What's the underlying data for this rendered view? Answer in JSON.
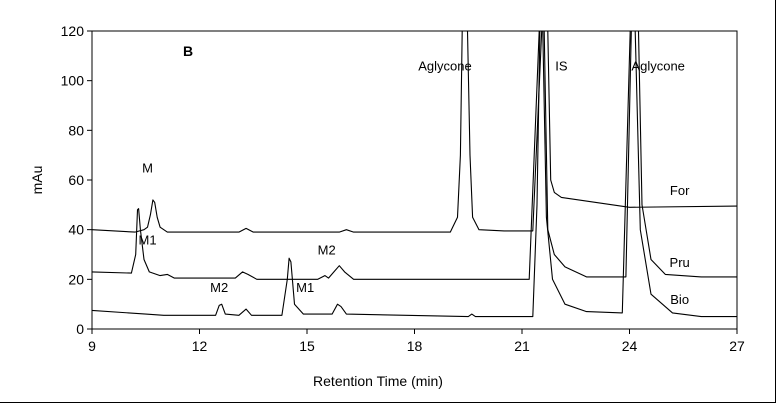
{
  "chart_data": {
    "type": "line",
    "panel_label": "B",
    "xlabel": "Retention Time (min)",
    "ylabel": "mAu",
    "xlim": [
      9,
      27
    ],
    "ylim": [
      0,
      120
    ],
    "x_ticks": [
      "9",
      "12",
      "15",
      "18",
      "21",
      "24",
      "27"
    ],
    "y_ticks": [
      "0",
      "20",
      "40",
      "60",
      "80",
      "100",
      "120"
    ],
    "grid": false,
    "series": [
      {
        "name": "For",
        "points": [
          [
            9.0,
            40
          ],
          [
            10.2,
            39
          ],
          [
            10.45,
            40
          ],
          [
            10.55,
            41
          ],
          [
            10.63,
            46
          ],
          [
            10.7,
            52
          ],
          [
            10.75,
            51
          ],
          [
            10.82,
            45
          ],
          [
            10.9,
            41
          ],
          [
            11.1,
            39
          ],
          [
            13.1,
            39
          ],
          [
            13.3,
            40.5
          ],
          [
            13.5,
            39
          ],
          [
            15.9,
            39
          ],
          [
            16.1,
            40
          ],
          [
            16.3,
            39
          ],
          [
            19.0,
            39
          ],
          [
            19.2,
            45
          ],
          [
            19.28,
            70
          ],
          [
            19.33,
            120
          ],
          [
            19.48,
            120
          ],
          [
            19.55,
            70
          ],
          [
            19.62,
            45
          ],
          [
            19.8,
            40
          ],
          [
            20.5,
            39.5
          ],
          [
            21.3,
            39.5
          ],
          [
            21.55,
            120
          ],
          [
            21.72,
            120
          ],
          [
            21.8,
            60
          ],
          [
            21.9,
            55
          ],
          [
            22.1,
            53
          ],
          [
            24.0,
            49
          ],
          [
            27.0,
            49.5
          ]
        ]
      },
      {
        "name": "Pru",
        "points": [
          [
            9.0,
            23
          ],
          [
            10.1,
            22.5
          ],
          [
            10.22,
            30
          ],
          [
            10.27,
            48
          ],
          [
            10.3,
            48.5
          ],
          [
            10.35,
            40
          ],
          [
            10.45,
            28
          ],
          [
            10.6,
            23
          ],
          [
            10.9,
            21.5
          ],
          [
            11.1,
            22
          ],
          [
            11.3,
            20.5
          ],
          [
            13.0,
            20.5
          ],
          [
            13.2,
            23
          ],
          [
            13.35,
            22
          ],
          [
            13.6,
            20
          ],
          [
            15.3,
            20
          ],
          [
            15.5,
            21.5
          ],
          [
            15.6,
            20.5
          ],
          [
            15.75,
            23
          ],
          [
            15.9,
            25.5
          ],
          [
            16.05,
            23
          ],
          [
            16.3,
            20
          ],
          [
            21.2,
            20
          ],
          [
            21.48,
            120
          ],
          [
            21.62,
            120
          ],
          [
            21.72,
            40
          ],
          [
            21.9,
            30
          ],
          [
            22.2,
            25
          ],
          [
            22.8,
            21
          ],
          [
            23.9,
            21
          ],
          [
            24.05,
            120
          ],
          [
            24.25,
            120
          ],
          [
            24.35,
            50
          ],
          [
            24.6,
            28
          ],
          [
            25.0,
            22
          ],
          [
            26.0,
            21
          ],
          [
            27.0,
            21
          ]
        ]
      },
      {
        "name": "Bio",
        "points": [
          [
            9.0,
            7.5
          ],
          [
            10.5,
            6
          ],
          [
            11.0,
            5.5
          ],
          [
            12.45,
            5.5
          ],
          [
            12.55,
            9.5
          ],
          [
            12.62,
            10
          ],
          [
            12.72,
            6
          ],
          [
            13.1,
            5.5
          ],
          [
            13.3,
            8
          ],
          [
            13.45,
            5.5
          ],
          [
            14.3,
            5.5
          ],
          [
            14.45,
            20
          ],
          [
            14.5,
            28.5
          ],
          [
            14.55,
            27
          ],
          [
            14.65,
            10
          ],
          [
            14.9,
            6
          ],
          [
            15.7,
            6
          ],
          [
            15.85,
            10
          ],
          [
            15.95,
            9
          ],
          [
            16.1,
            6
          ],
          [
            19.5,
            5
          ],
          [
            19.6,
            6
          ],
          [
            19.7,
            5
          ],
          [
            21.3,
            5
          ],
          [
            21.42,
            50
          ],
          [
            21.5,
            120
          ],
          [
            21.58,
            120
          ],
          [
            21.68,
            45
          ],
          [
            21.85,
            20
          ],
          [
            22.2,
            10
          ],
          [
            22.8,
            7
          ],
          [
            23.8,
            6.5
          ],
          [
            24.02,
            120
          ],
          [
            24.16,
            120
          ],
          [
            24.3,
            40
          ],
          [
            24.6,
            14
          ],
          [
            25.2,
            6.5
          ],
          [
            26.0,
            5
          ],
          [
            27.0,
            5
          ]
        ]
      }
    ],
    "annotations": [
      {
        "text": "M",
        "x": 10.55,
        "y": 63
      },
      {
        "text": "M1",
        "x": 10.55,
        "y": 34
      },
      {
        "text": "M2",
        "x": 12.55,
        "y": 15
      },
      {
        "text": "M1",
        "x": 14.95,
        "y": 15
      },
      {
        "text": "M2",
        "x": 15.55,
        "y": 30
      },
      {
        "text": "Aglycone",
        "x": 18.85,
        "y": 104
      },
      {
        "text": "IS",
        "x": 22.1,
        "y": 104
      },
      {
        "text": "Aglycone",
        "x": 24.8,
        "y": 104
      },
      {
        "text": "For",
        "x": 25.4,
        "y": 54
      },
      {
        "text": "Pru",
        "x": 25.4,
        "y": 25
      },
      {
        "text": "Bio",
        "x": 25.4,
        "y": 10
      }
    ]
  }
}
